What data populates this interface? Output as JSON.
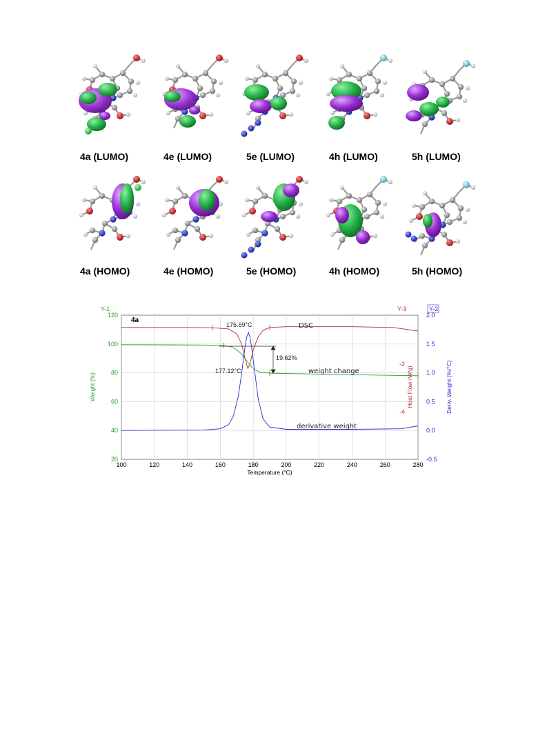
{
  "figure_top": {
    "panels": [
      {
        "label": "4a (LUMO)"
      },
      {
        "label": "4e (LUMO)"
      },
      {
        "label": "5e (LUMO)"
      },
      {
        "label": "4h (LUMO)"
      },
      {
        "label": "5h (LUMO)"
      },
      {
        "label": "4a (HOMO)"
      },
      {
        "label": "4e (HOMO)"
      },
      {
        "label": "5e (HOMO)"
      },
      {
        "label": "4h (HOMO)"
      },
      {
        "label": "5h (HOMO)"
      }
    ],
    "colors": {
      "lobe_a": "#27b34a",
      "lobe_b": "#9a2fd2",
      "carbon": "#8a8a8a",
      "hydrogen": "#d4d4d4",
      "oxygen": "#cc2222",
      "nitrogen": "#2233cc",
      "chlorine": "#33cc44",
      "fluorine": "#66ccdd"
    }
  },
  "chart_data": {
    "type": "line",
    "sample_label": "4a",
    "xlabel": "Temperature (°C)",
    "ylabel_left": "Weight (%)",
    "ylabel_right_inner": "Heat Flow (W/g)",
    "ylabel_right_outer": "Deriv. Weight (%/°C)",
    "axis_tags": {
      "y1": "Y-1",
      "y3": "Y-3",
      "y2": "Y-2"
    },
    "xlim": [
      100,
      280
    ],
    "xticks": [
      "100",
      "120",
      "140",
      "160",
      "180",
      "200",
      "220",
      "240",
      "260",
      "280"
    ],
    "ylim_left": [
      20,
      120
    ],
    "yticks_left": [
      "20",
      "40",
      "60",
      "80",
      "100",
      "120"
    ],
    "ylim_right": [
      -0.5,
      2.0
    ],
    "yticks_right": [
      "-0.5",
      "0.0",
      "0.5",
      "1.0",
      "1.5",
      "2.0"
    ],
    "heatflow_ticks": [
      "-2",
      "-4"
    ],
    "series": [
      {
        "name": "DSC",
        "color": "#b03030",
        "x": [
          100,
          140,
          155,
          165,
          170,
          173,
          175,
          176.7,
          178,
          180,
          183,
          186,
          190,
          200,
          240,
          265,
          280
        ],
        "y": [
          111.5,
          111.5,
          111.3,
          110.5,
          107,
          100,
          90,
          83,
          86,
          96,
          105,
          109.5,
          111.5,
          112,
          112,
          111.5,
          109
        ]
      },
      {
        "name": "weight change",
        "color": "#2a9a2a",
        "x": [
          100,
          150,
          162,
          167,
          170,
          173,
          175,
          177,
          179,
          182,
          185,
          190,
          200,
          240,
          280
        ],
        "y": [
          99.5,
          99.3,
          99,
          98,
          96,
          93,
          90,
          87,
          84,
          81.5,
          80.3,
          79.8,
          79.5,
          78.7,
          78
        ]
      },
      {
        "name": "derivative weight",
        "color": "#2a2ad6",
        "x": [
          100,
          150,
          160,
          165,
          168,
          171,
          173,
          175,
          176,
          177.12,
          178,
          179,
          181,
          183,
          186,
          190,
          200,
          240,
          270,
          280
        ],
        "y": [
          0.0,
          0.01,
          0.03,
          0.1,
          0.25,
          0.6,
          1.0,
          1.45,
          1.62,
          1.7,
          1.62,
          1.45,
          1.0,
          0.55,
          0.2,
          0.06,
          0.02,
          0.02,
          0.03,
          0.08
        ]
      }
    ],
    "annotations": {
      "dsc_peak": "176.69°C",
      "deriv_peak": "177.12°C",
      "weight_loss": "19.62%",
      "dsc_label": "DSC",
      "weight_label": "weight change",
      "deriv_label": "derivative weight"
    },
    "grid": true
  }
}
